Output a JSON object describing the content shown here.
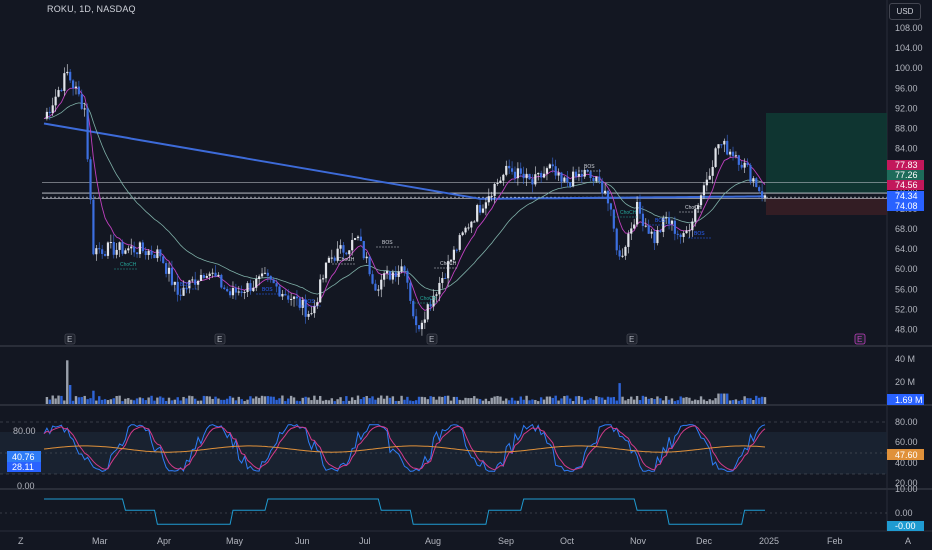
{
  "header": {
    "symbol_line": "ROKU, 1D, NASDAQ",
    "currency": "USD"
  },
  "colors": {
    "background": "#131722",
    "up": "#e1e4ea",
    "down": "#3c6fe0",
    "ema_fast": "#c040c0",
    "ema_slow": "#7fb0a8",
    "ma_long": "#3d6bd9",
    "level_line": "#d1d4dc",
    "target_zone": "#0f3b34",
    "stop_zone": "#3a1e25",
    "volume_up": "#9aa0ab",
    "volume_down": "#2e64d6",
    "stoch_k": "#2e7cf6",
    "stoch_d": "#d43a8a",
    "rsi": "#e0913a",
    "osc": "#1f9bd1"
  },
  "price_axis": {
    "ticks": [
      "108.00",
      "104.00",
      "100.00",
      "96.00",
      "92.00",
      "88.00",
      "84.00",
      "80.00",
      "76.00",
      "72.00",
      "68.00",
      "64.00",
      "60.00",
      "56.00",
      "52.00",
      "48.00"
    ]
  },
  "price_tags": [
    {
      "id": "tag1",
      "value": "77.83",
      "color": "#c2185b"
    },
    {
      "id": "tag2",
      "value": "77.26",
      "color": "#1e6b5a"
    },
    {
      "id": "tag3",
      "value": "74.56",
      "color": "#c2185b"
    },
    {
      "id": "tag4",
      "value": "74.34",
      "color": "#2962ff"
    },
    {
      "id": "tag5",
      "value": "74.08",
      "color": "#2962ff"
    }
  ],
  "annotations": [
    {
      "id": "ann-choch-1",
      "text": "ChoCH",
      "color": "#26a69a"
    },
    {
      "id": "ann-bos-1",
      "text": "BOS",
      "color": "#2962ff"
    },
    {
      "id": "ann-bos-2",
      "text": "BOS",
      "color": "#2962ff"
    },
    {
      "id": "ann-bos-3",
      "text": "BOS",
      "color": "#2962ff"
    },
    {
      "id": "ann-choch-2",
      "text": "ChoCH",
      "color": "#d1d4dc"
    },
    {
      "id": "ann-bos-4",
      "text": "BOS",
      "color": "#d1d4dc"
    },
    {
      "id": "ann-choch-3",
      "text": "ChoCH",
      "color": "#d1d4dc"
    },
    {
      "id": "ann-choch-4",
      "text": "ChoCH",
      "color": "#26a69a"
    },
    {
      "id": "ann-bos-5",
      "text": "BOS",
      "color": "#d1d4dc"
    },
    {
      "id": "ann-choch-5",
      "text": "ChoCH",
      "color": "#26a69a"
    },
    {
      "id": "ann-bos-6",
      "text": "BOS",
      "color": "#2962ff"
    },
    {
      "id": "ann-choch-6",
      "text": "ChoCH",
      "color": "#d1d4dc"
    },
    {
      "id": "ann-bos-7",
      "text": "BOS",
      "color": "#2962ff"
    }
  ],
  "earnings_marker": "E",
  "volume_pane": {
    "ticks": [
      "40 M",
      "20 M"
    ],
    "tag": "1.69 M"
  },
  "stoch_pane": {
    "left_ticks": [
      "80.00",
      "0.00"
    ],
    "left_tags": [
      "40.76",
      "28.11"
    ],
    "right_ticks": [
      "80.00",
      "60.00",
      "40.00",
      "20.00"
    ],
    "tag": "47.60"
  },
  "osc_pane": {
    "ticks": [
      "10.00",
      "0.00"
    ],
    "tag": "-0.00"
  },
  "time_axis": {
    "labels": [
      "Mar",
      "Apr",
      "May",
      "Jun",
      "Jul",
      "Aug",
      "Sep",
      "Oct",
      "Nov",
      "Dec",
      "2025",
      "Feb"
    ]
  },
  "corner_labels": {
    "left": "Z",
    "right": "A"
  }
}
